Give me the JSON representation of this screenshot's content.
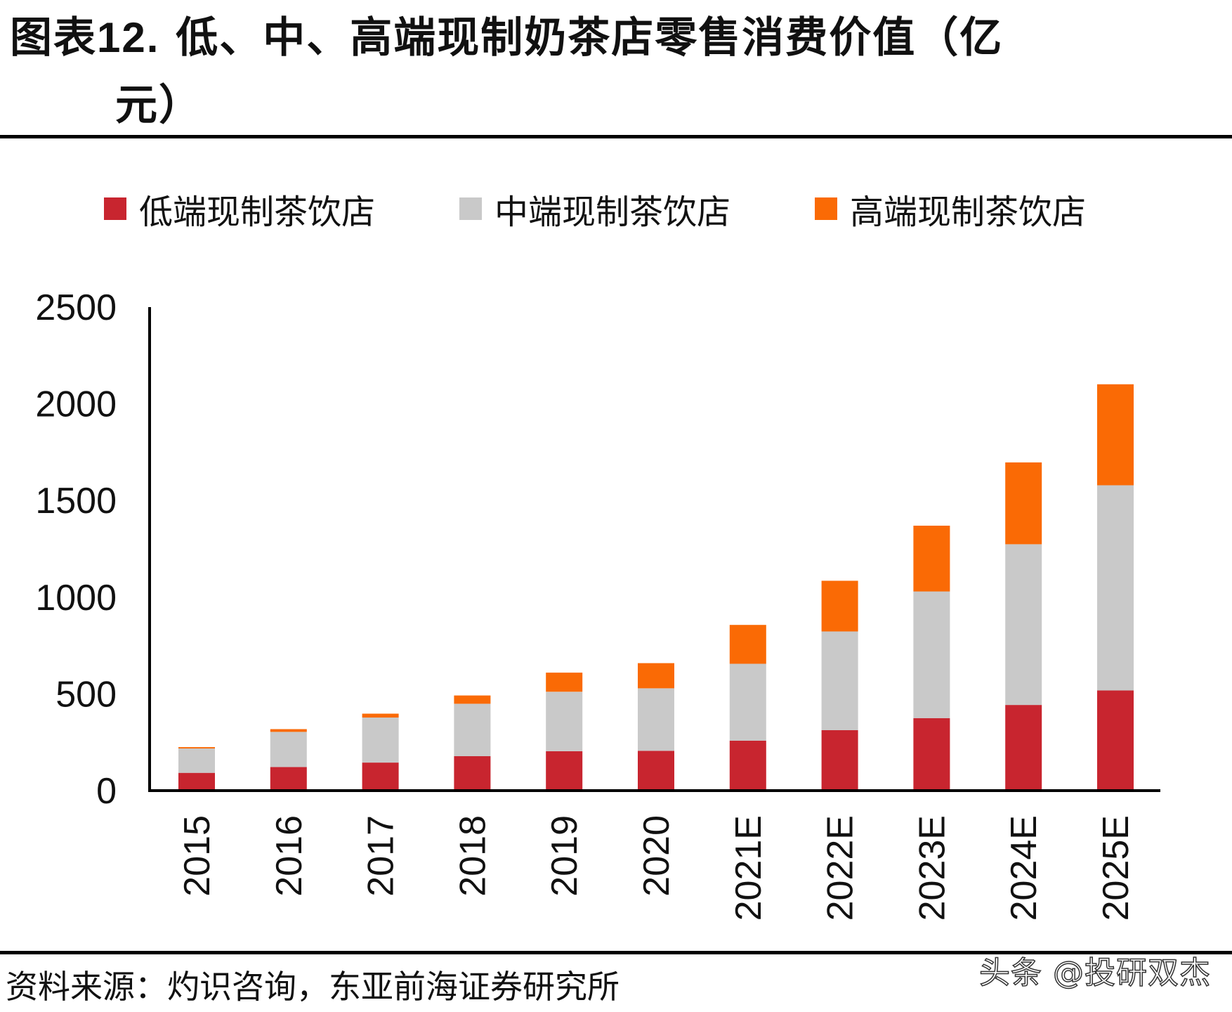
{
  "title": {
    "prefix": "图表",
    "number": "12.",
    "line1_text": " 低、中、高端现制奶茶店零售消费价值（亿",
    "line2_text": "元）"
  },
  "source": "资料来源：灼识咨询，东亚前海证券研究所",
  "watermark": "头条 @投研双杰",
  "colors": {
    "low": "#C8252F",
    "mid": "#C9C9C9",
    "high": "#FA6A05",
    "axis": "#000000"
  },
  "chart_data": {
    "type": "bar",
    "stacked": true,
    "title": "低、中、高端现制奶茶店零售消费价值（亿元）",
    "categories": [
      "2015",
      "2016",
      "2017",
      "2018",
      "2019",
      "2020",
      "2021E",
      "2022E",
      "2023E",
      "2024E",
      "2025E"
    ],
    "series": [
      {
        "name": "低端现制茶饮店",
        "color_key": "low",
        "values": [
          92,
          122,
          145,
          178,
          204,
          206,
          258,
          313,
          375,
          443,
          518
        ]
      },
      {
        "name": "中端现制茶饮店",
        "color_key": "mid",
        "values": [
          126,
          182,
          233,
          271,
          307,
          323,
          398,
          510,
          655,
          831,
          1061
        ]
      },
      {
        "name": "高端现制茶饮店",
        "color_key": "high",
        "values": [
          7,
          14,
          20,
          43,
          99,
          130,
          201,
          262,
          340,
          423,
          522
        ]
      }
    ],
    "y_ticks": [
      "0",
      "500",
      "1000",
      "1500",
      "2000",
      "2500"
    ],
    "ylim": [
      0,
      2500
    ],
    "xlabel": "",
    "ylabel": "",
    "legend_position": "top",
    "grid": false
  }
}
